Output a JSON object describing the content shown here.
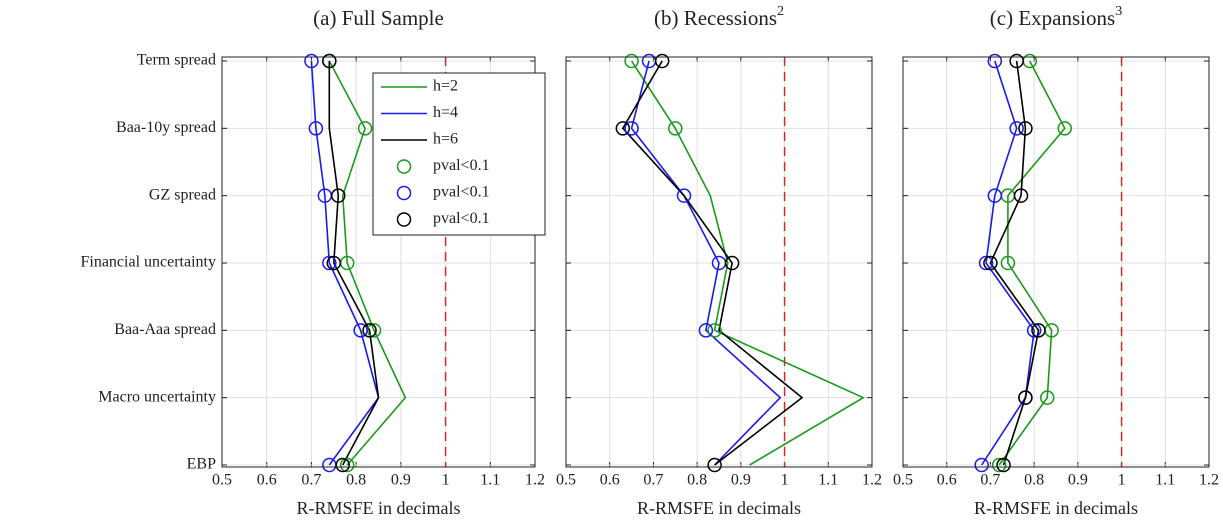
{
  "chart_data": [
    {
      "type": "line",
      "title": "(a) Full Sample",
      "xlabel": "R-RMSFE in decimals",
      "categories": [
        "Term spread",
        "Baa-10y spread",
        "GZ spread",
        "Financial uncertainty",
        "Baa-Aaa spread",
        "Macro uncertainty",
        "EBP"
      ],
      "xlim": [
        0.5,
        1.2
      ],
      "xticks": [
        0.5,
        0.6,
        0.7,
        0.8,
        0.9,
        1,
        1.1,
        1.2
      ],
      "grid": true,
      "reference_line": 1,
      "reference_color": "#d62728",
      "legend": "upper right",
      "series": [
        {
          "name": "h=2",
          "mode": "line",
          "color": "#1a9a1a",
          "values": [
            0.74,
            0.82,
            0.77,
            0.78,
            0.84,
            0.91,
            0.78
          ]
        },
        {
          "name": "h=4",
          "mode": "line",
          "color": "#1a1aee",
          "values": [
            0.7,
            0.71,
            0.73,
            0.74,
            0.81,
            0.85,
            0.74
          ]
        },
        {
          "name": "h=6",
          "mode": "line",
          "color": "#000000",
          "values": [
            0.74,
            0.74,
            0.76,
            0.75,
            0.83,
            0.85,
            0.77
          ]
        },
        {
          "name": "pval<0.1",
          "mode": "markers",
          "color": "#1a9a1a",
          "values": [
            0.74,
            0.82,
            null,
            0.78,
            0.84,
            null,
            0.78
          ]
        },
        {
          "name": "pval<0.1",
          "mode": "markers",
          "color": "#1a1aee",
          "values": [
            0.7,
            0.71,
            0.73,
            0.74,
            0.81,
            null,
            0.74
          ]
        },
        {
          "name": "pval<0.1",
          "mode": "markers",
          "color": "#000000",
          "values": [
            0.74,
            null,
            0.76,
            0.75,
            0.83,
            null,
            0.77
          ]
        }
      ]
    },
    {
      "type": "line",
      "title": "(b) Recessions",
      "title_superscript": "2",
      "xlabel": "R-RMSFE in decimals",
      "categories": [
        null,
        null,
        null,
        null,
        null,
        null,
        null
      ],
      "xlim": [
        0.5,
        1.2
      ],
      "xticks": [
        0.5,
        0.6,
        0.7,
        0.8,
        0.9,
        1,
        1.1,
        1.2
      ],
      "grid": true,
      "reference_line": 1,
      "reference_color": "#d62728",
      "series": [
        {
          "mode": "line",
          "color": "#1a9a1a",
          "values": [
            0.65,
            0.75,
            0.83,
            0.87,
            0.84,
            1.18,
            0.92
          ]
        },
        {
          "mode": "line",
          "color": "#1a1aee",
          "values": [
            0.69,
            0.65,
            0.77,
            0.85,
            0.82,
            0.99,
            0.84
          ]
        },
        {
          "mode": "line",
          "color": "#000000",
          "values": [
            0.72,
            0.63,
            0.77,
            0.88,
            0.85,
            1.04,
            0.84
          ]
        },
        {
          "mode": "markers",
          "color": "#1a9a1a",
          "values": [
            0.65,
            0.75,
            null,
            null,
            0.84,
            null,
            null
          ]
        },
        {
          "mode": "markers",
          "color": "#1a1aee",
          "values": [
            0.69,
            0.65,
            0.77,
            0.85,
            0.82,
            null,
            null
          ]
        },
        {
          "mode": "markers",
          "color": "#000000",
          "values": [
            0.72,
            0.63,
            null,
            0.88,
            null,
            null,
            0.84
          ]
        }
      ]
    },
    {
      "type": "line",
      "title": "(c) Expansions",
      "title_superscript": "3",
      "xlabel": "R-RMSFE in decimals",
      "categories": [
        null,
        null,
        null,
        null,
        null,
        null,
        null
      ],
      "xlim": [
        0.5,
        1.2
      ],
      "xticks": [
        0.5,
        0.6,
        0.7,
        0.8,
        0.9,
        1,
        1.1,
        1.2
      ],
      "grid": true,
      "reference_line": 1,
      "reference_color": "#d62728",
      "series": [
        {
          "mode": "line",
          "color": "#1a9a1a",
          "values": [
            0.79,
            0.87,
            0.74,
            0.74,
            0.84,
            0.83,
            0.72
          ]
        },
        {
          "mode": "line",
          "color": "#1a1aee",
          "values": [
            0.71,
            0.76,
            0.71,
            0.69,
            0.8,
            0.78,
            0.68
          ]
        },
        {
          "mode": "line",
          "color": "#000000",
          "values": [
            0.76,
            0.78,
            0.77,
            0.7,
            0.81,
            0.78,
            0.73
          ]
        },
        {
          "mode": "markers",
          "color": "#1a9a1a",
          "values": [
            0.79,
            0.87,
            0.74,
            0.74,
            0.84,
            0.83,
            0.72
          ]
        },
        {
          "mode": "markers",
          "color": "#1a1aee",
          "values": [
            0.71,
            0.76,
            0.71,
            0.69,
            0.8,
            0.78,
            0.68
          ]
        },
        {
          "mode": "markers",
          "color": "#000000",
          "values": [
            0.76,
            0.78,
            0.77,
            0.7,
            0.81,
            0.78,
            0.73
          ]
        }
      ]
    }
  ]
}
